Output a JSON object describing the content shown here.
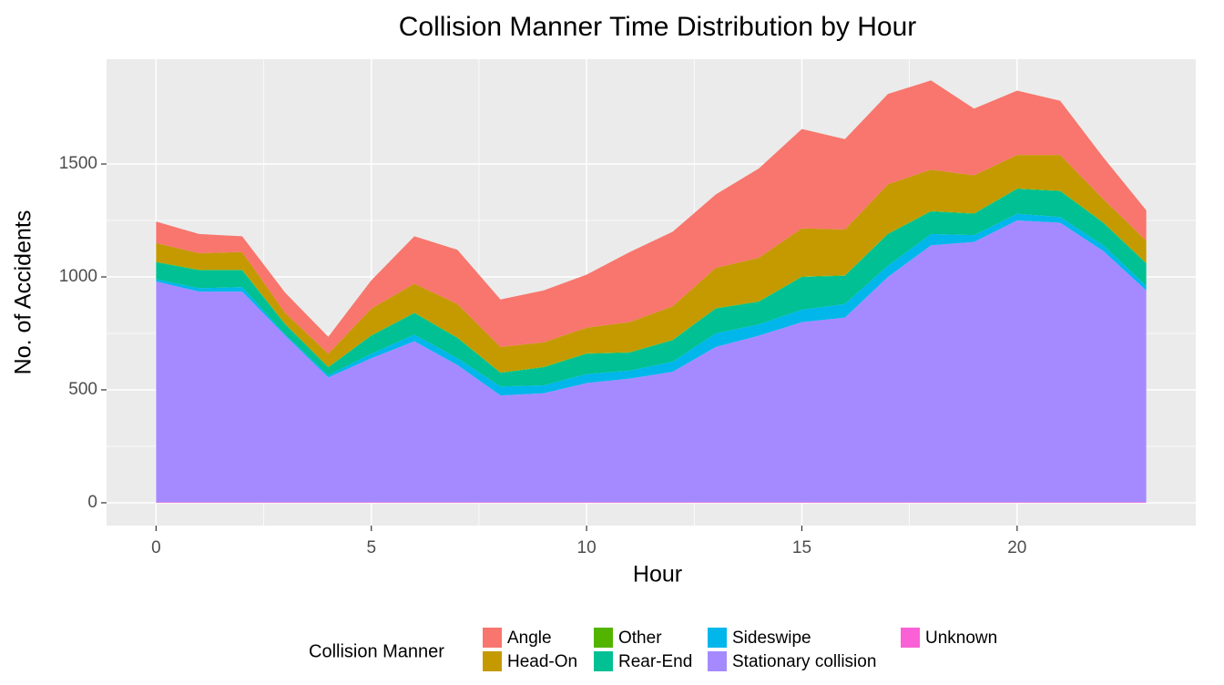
{
  "chart_data": {
    "type": "stacked_area",
    "title": "Collision Manner Time Distribution by Hour",
    "x_label": "Hour",
    "y_label": "No. of Accidents",
    "legend_title": "Collision Manner",
    "x": [
      0,
      1,
      2,
      3,
      4,
      5,
      6,
      7,
      8,
      9,
      10,
      11,
      12,
      13,
      14,
      15,
      16,
      17,
      18,
      19,
      20,
      21,
      22,
      23
    ],
    "series": [
      {
        "name": "Angle",
        "color": "#F8766D",
        "values": [
          95,
          85,
          70,
          90,
          75,
          125,
          210,
          240,
          210,
          230,
          235,
          310,
          330,
          325,
          395,
          440,
          400,
          400,
          395,
          295,
          285,
          240,
          185,
          135
        ]
      },
      {
        "name": "Head-On",
        "color": "#C49A00",
        "values": [
          83,
          73,
          78,
          48,
          58,
          118,
          128,
          148,
          113,
          108,
          113,
          133,
          148,
          178,
          193,
          213,
          203,
          218,
          183,
          168,
          148,
          158,
          103,
          98
        ]
      },
      {
        "name": "Other",
        "color": "#53B400",
        "values": [
          2,
          2,
          2,
          2,
          2,
          2,
          2,
          2,
          2,
          2,
          2,
          2,
          2,
          2,
          2,
          2,
          2,
          2,
          2,
          2,
          2,
          2,
          2,
          2
        ]
      },
      {
        "name": "Rear-End",
        "color": "#00C094",
        "values": [
          75,
          80,
          75,
          45,
          35,
          80,
          95,
          90,
          60,
          80,
          90,
          80,
          95,
          110,
          100,
          145,
          125,
          140,
          100,
          95,
          110,
          115,
          100,
          100
        ]
      },
      {
        "name": "Sideswipe",
        "color": "#00B6EB",
        "values": [
          10,
          15,
          20,
          5,
          10,
          20,
          30,
          30,
          40,
          35,
          40,
          35,
          45,
          60,
          50,
          55,
          60,
          50,
          50,
          30,
          30,
          25,
          25,
          20
        ]
      },
      {
        "name": "Stationary collision",
        "color": "#A58AFF",
        "values": [
          977,
          932,
          932,
          737,
          552,
          637,
          712,
          607,
          472,
          482,
          527,
          547,
          577,
          687,
          737,
          797,
          817,
          997,
          1137,
          1152,
          1247,
          1237,
          1112,
          937
        ]
      },
      {
        "name": "Unknown",
        "color": "#FB61D7",
        "values": [
          3,
          3,
          3,
          3,
          3,
          3,
          3,
          3,
          3,
          3,
          3,
          3,
          3,
          3,
          3,
          3,
          3,
          3,
          3,
          3,
          3,
          3,
          3,
          3
        ]
      }
    ],
    "xlim": [
      -1.15,
      24.15
    ],
    "xticks": [
      0,
      5,
      10,
      15,
      20
    ],
    "ylim": [
      -101,
      1964
    ],
    "yticks": [
      0,
      500,
      1000,
      1500
    ],
    "grid": true
  }
}
